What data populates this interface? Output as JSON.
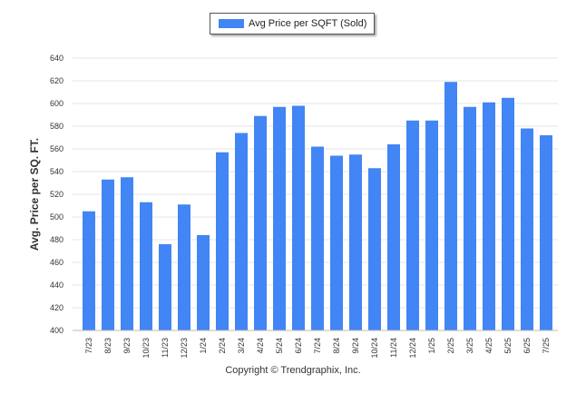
{
  "chart_data": {
    "type": "bar",
    "categories": [
      "7/23",
      "8/23",
      "9/23",
      "10/23",
      "11/23",
      "12/23",
      "1/24",
      "2/24",
      "3/24",
      "4/24",
      "5/24",
      "6/24",
      "7/24",
      "8/24",
      "9/24",
      "10/24",
      "11/24",
      "12/24",
      "1/25",
      "2/25",
      "3/25",
      "4/25",
      "5/25",
      "6/25",
      "7/25"
    ],
    "series": [
      {
        "name": "Avg Price per SQFT (Sold)",
        "color": "#4285f4",
        "values": [
          505,
          533,
          535,
          513,
          476,
          511,
          484,
          557,
          574,
          589,
          597,
          598,
          562,
          554,
          555,
          543,
          564,
          585,
          585,
          619,
          597,
          601,
          605,
          578,
          572
        ]
      }
    ],
    "title": "",
    "xlabel": "",
    "ylabel": "Avg. Price per SQ. FT.",
    "ylim": [
      400,
      640
    ],
    "yticks": [
      400,
      420,
      440,
      460,
      480,
      500,
      520,
      540,
      560,
      580,
      600,
      620,
      640
    ],
    "grid": true,
    "legend_position": "top-center"
  },
  "footer": {
    "copyright": "Copyright © Trendgraphix, Inc."
  }
}
